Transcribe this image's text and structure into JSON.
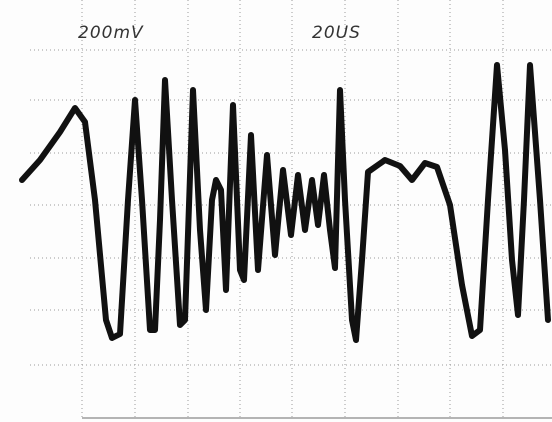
{
  "labels": {
    "volts_per_div": "200mV",
    "time_per_div": "20US"
  }
}
